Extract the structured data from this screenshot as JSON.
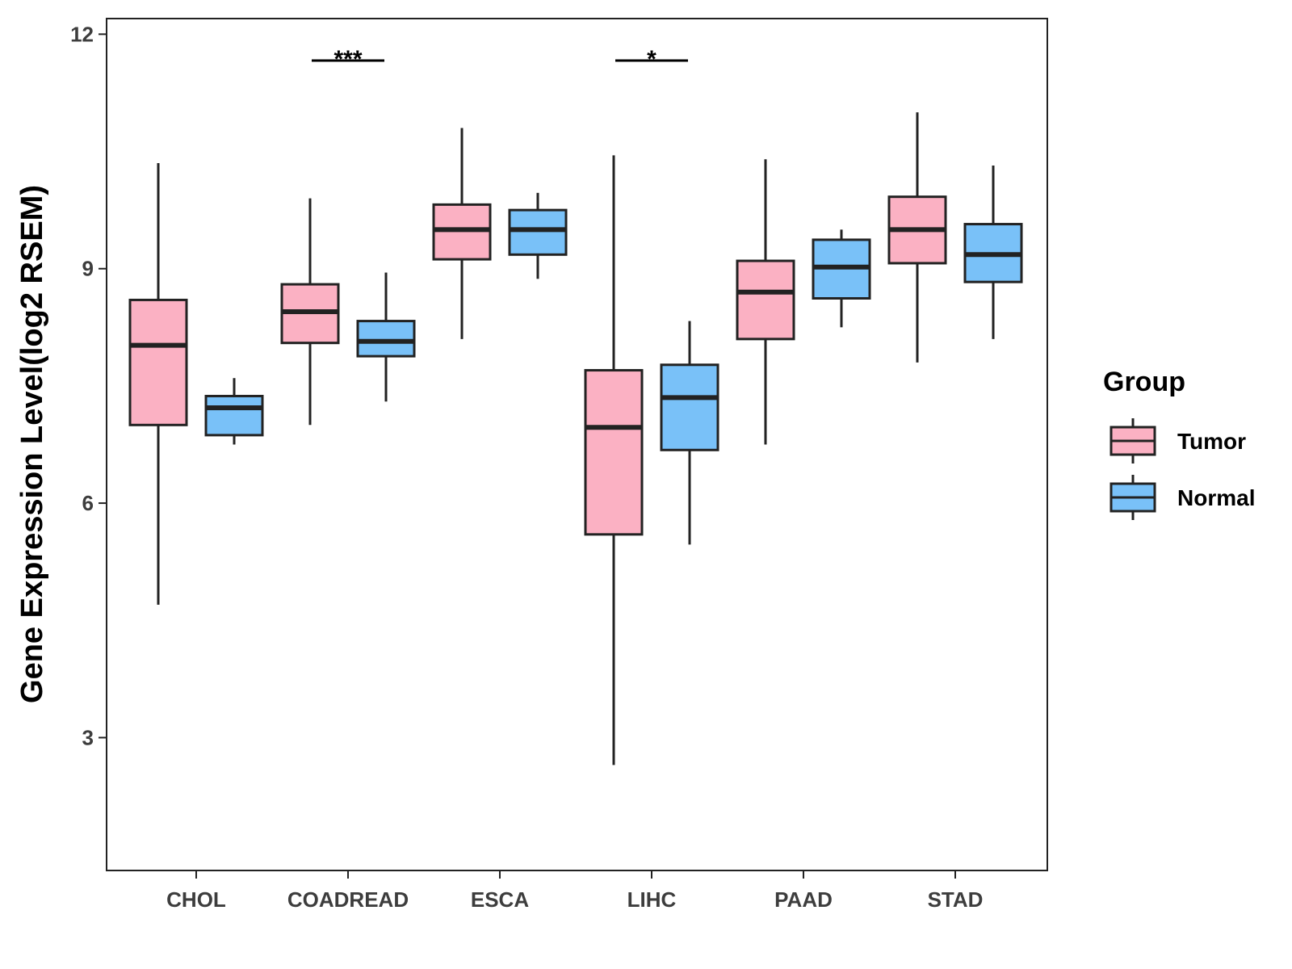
{
  "chart_data": {
    "type": "boxplot",
    "title": "",
    "xlabel": "",
    "ylabel": "Gene Expression Level(log2 RSEM)",
    "ylim": [
      1.3,
      12.2
    ],
    "yticks": [
      3,
      6,
      9,
      12
    ],
    "grid": false,
    "legend": {
      "title": "Group",
      "position": "right",
      "entries": [
        "Tumor",
        "Normal"
      ]
    },
    "colors": {
      "Tumor": "#fbb1c3",
      "Normal": "#79c1f8",
      "stroke": "#222222"
    },
    "categories": [
      "CHOL",
      "COADREAD",
      "ESCA",
      "LIHC",
      "PAAD",
      "STAD"
    ],
    "series": [
      {
        "name": "Tumor",
        "boxes": [
          {
            "min": 4.7,
            "q1": 7.0,
            "median": 8.02,
            "q3": 8.6,
            "max": 10.35
          },
          {
            "min": 7.0,
            "q1": 8.05,
            "median": 8.45,
            "q3": 8.8,
            "max": 9.9
          },
          {
            "min": 8.1,
            "q1": 9.12,
            "median": 9.5,
            "q3": 9.82,
            "max": 10.8
          },
          {
            "min": 2.65,
            "q1": 5.6,
            "median": 6.97,
            "q3": 7.7,
            "max": 10.45
          },
          {
            "min": 6.75,
            "q1": 8.1,
            "median": 8.7,
            "q3": 9.1,
            "max": 10.4
          },
          {
            "min": 7.8,
            "q1": 9.07,
            "median": 9.5,
            "q3": 9.92,
            "max": 11.0
          }
        ]
      },
      {
        "name": "Normal",
        "boxes": [
          {
            "min": 6.75,
            "q1": 6.87,
            "median": 7.22,
            "q3": 7.37,
            "max": 7.6
          },
          {
            "min": 7.3,
            "q1": 7.88,
            "median": 8.07,
            "q3": 8.33,
            "max": 8.95
          },
          {
            "min": 8.87,
            "q1": 9.18,
            "median": 9.5,
            "q3": 9.75,
            "max": 9.97
          },
          {
            "min": 5.47,
            "q1": 6.68,
            "median": 7.35,
            "q3": 7.77,
            "max": 8.33
          },
          {
            "min": 8.25,
            "q1": 8.62,
            "median": 9.02,
            "q3": 9.37,
            "max": 9.5
          },
          {
            "min": 8.1,
            "q1": 8.83,
            "median": 9.18,
            "q3": 9.57,
            "max": 10.32
          }
        ]
      }
    ],
    "annotations": [
      {
        "category": "COADREAD",
        "label": "***"
      },
      {
        "category": "LIHC",
        "label": "*"
      }
    ]
  }
}
